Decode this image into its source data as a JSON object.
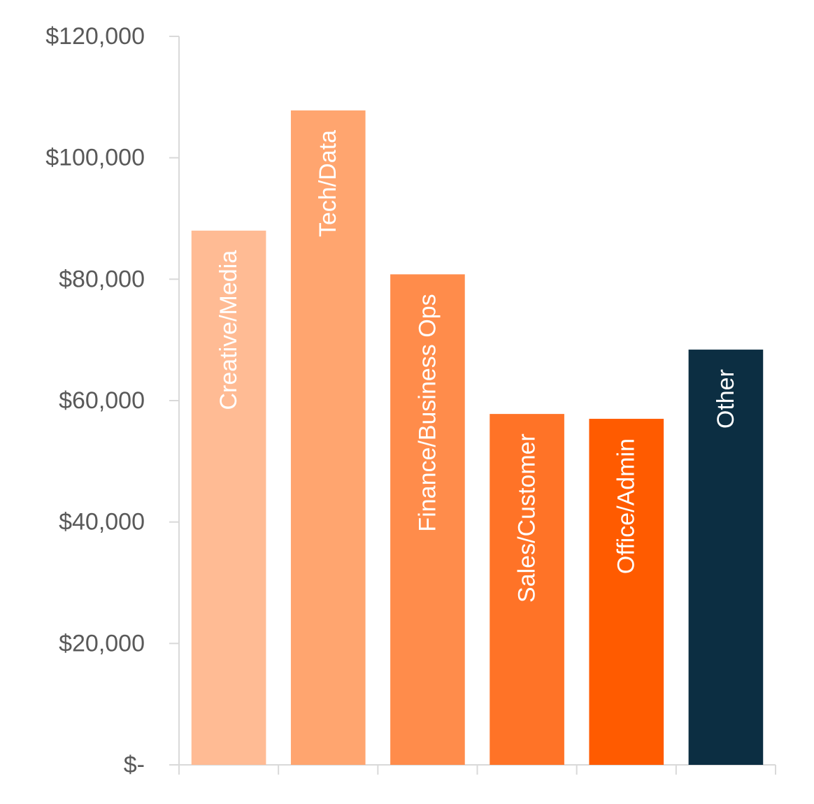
{
  "chart_data": {
    "type": "bar",
    "categories": [
      "Creative/Media",
      "Tech/Data",
      "Finance/Business Ops",
      "Sales/Customer",
      "Office/Admin",
      "Other"
    ],
    "values": [
      88000,
      107800,
      80800,
      57800,
      57000,
      68400
    ],
    "colors": [
      "#ffbb94",
      "#ffa56f",
      "#ff8c4b",
      "#ff7327",
      "#ff5b00",
      "#0c2e42"
    ],
    "ylim": [
      0,
      120000
    ],
    "yticks": [
      {
        "value": 0,
        "label": "$-"
      },
      {
        "value": 20000,
        "label": "$20,000"
      },
      {
        "value": 40000,
        "label": "$40,000"
      },
      {
        "value": 60000,
        "label": "$60,000"
      },
      {
        "value": 80000,
        "label": "$80,000"
      },
      {
        "value": 100000,
        "label": "$100,000"
      },
      {
        "value": 120000,
        "label": "$120,000"
      }
    ],
    "labels_inside_bars": true,
    "grid": false,
    "title": "",
    "xlabel": "",
    "ylabel": ""
  }
}
